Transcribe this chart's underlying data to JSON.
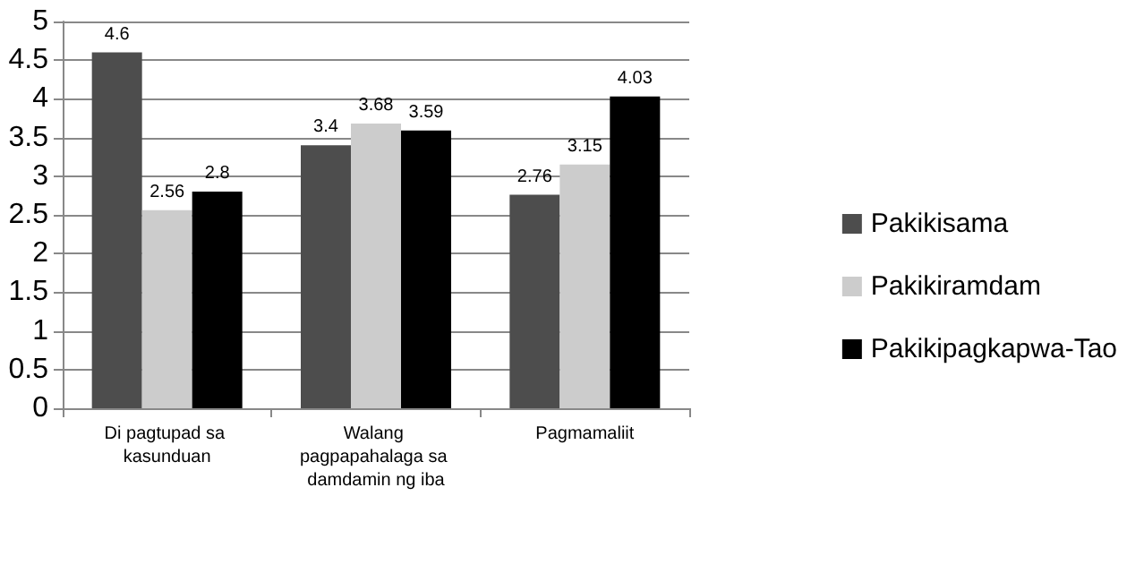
{
  "chart_data": {
    "type": "bar",
    "categories": [
      "Di pagtupad sa kasunduan",
      "Walang pagpapahalaga sa damdamin ng iba",
      "Pagmamaliit"
    ],
    "series": [
      {
        "name": "Pakikisama",
        "color": "#4d4d4d",
        "values": [
          4.6,
          3.4,
          2.76
        ]
      },
      {
        "name": "Pakikiramdam",
        "color": "#cccccc",
        "values": [
          2.56,
          3.68,
          3.15
        ]
      },
      {
        "name": "Pakikipagkapwa-Tao",
        "color": "#000000",
        "values": [
          2.8,
          3.59,
          4.03
        ]
      }
    ],
    "ylim": [
      0,
      5
    ],
    "yticks": [
      0,
      0.5,
      1,
      1.5,
      2,
      2.5,
      3,
      3.5,
      4,
      4.5,
      5
    ],
    "grid": "y",
    "legend": "right",
    "data_labels": true
  }
}
